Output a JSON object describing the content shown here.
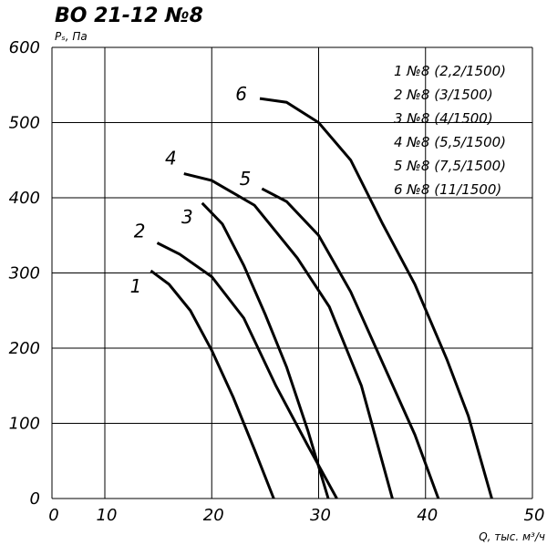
{
  "chart_data": {
    "type": "line",
    "title": "ВО 21-12 №8",
    "y_label": "Pₛ, Па",
    "x_label": "Q, тыс. м³/ч",
    "xlim": [
      0,
      50
    ],
    "xticks": [
      0,
      10,
      20,
      30,
      40,
      50
    ],
    "ylim": [
      0,
      600
    ],
    "yticks": [
      0,
      100,
      200,
      300,
      400,
      500,
      600
    ],
    "grid": true,
    "legend": "top-right",
    "series": [
      {
        "label": "1",
        "name": "1 №8 (2,2/1500)",
        "color": "#000000",
        "x": [
          14.3,
          16,
          18,
          20,
          22,
          24,
          25.8
        ],
        "values": [
          303,
          285,
          250,
          197,
          135,
          65,
          0
        ]
      },
      {
        "label": "2",
        "name": "2 №8 (3/1500)",
        "color": "#000000",
        "x": [
          14.9,
          17,
          20,
          23,
          26,
          29,
          31.7
        ],
        "values": [
          340,
          325,
          295,
          240,
          150,
          70,
          0
        ]
      },
      {
        "label": "3",
        "name": "3 №8 (4/1500)",
        "color": "#000000",
        "x": [
          19.1,
          21,
          23,
          25,
          27,
          29,
          30.9
        ],
        "values": [
          393,
          365,
          310,
          245,
          175,
          90,
          0
        ]
      },
      {
        "label": "4",
        "name": "4 №8 (5,5/1500)",
        "color": "#000000",
        "x": [
          17.4,
          20,
          24,
          28,
          31,
          34,
          36.9
        ],
        "values": [
          432,
          423,
          390,
          320,
          255,
          150,
          0
        ]
      },
      {
        "label": "5",
        "name": "5 №8 (7,5/1500)",
        "color": "#000000",
        "x": [
          24.7,
          27,
          30,
          33,
          36,
          39,
          41.2
        ],
        "values": [
          412,
          395,
          350,
          275,
          180,
          85,
          0
        ]
      },
      {
        "label": "6",
        "name": "6 №8 (11/1500)",
        "color": "#000000",
        "x": [
          24.5,
          27,
          30,
          33,
          36,
          39,
          42,
          44,
          46.2
        ],
        "values": [
          532,
          527,
          500,
          450,
          365,
          285,
          185,
          110,
          0
        ]
      }
    ]
  }
}
